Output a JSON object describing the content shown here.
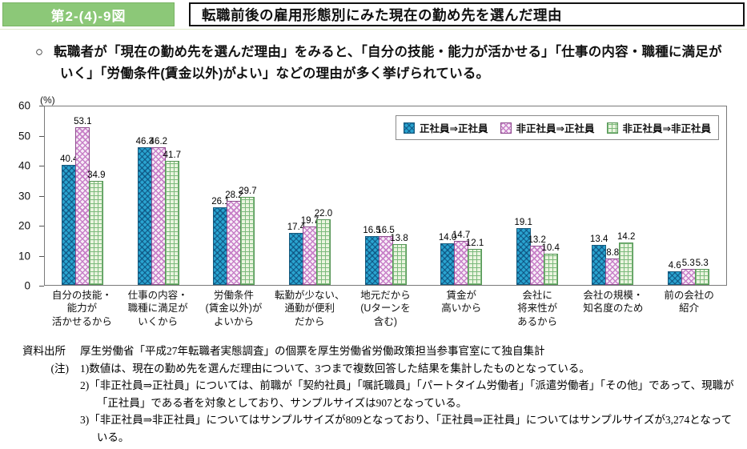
{
  "figure": {
    "number_label": "第2-(4)-9図",
    "title": "転職前後の雇用形態別にみた現在の勤め先を選んだ理由"
  },
  "lead": {
    "marker": "○",
    "text": "転職者が「現在の勤め先を選んだ理由」をみると、「自分の技能・能力が活かせる」「仕事の内容・職種に満足がいく」「労働条件(賃金以外)がよい」などの理由が多く挙げられている。"
  },
  "chart_data": {
    "type": "bar",
    "unit_label": "(%)",
    "ylim": [
      0,
      60
    ],
    "yticks": [
      0,
      10,
      20,
      30,
      40,
      50,
      60
    ],
    "grid": false,
    "legend_position": "top-right-inside",
    "categories": [
      "自分の技能・\n能力が\n活かせるから",
      "仕事の内容・\n職種に満足が\nいくから",
      "労働条件\n(賃金以外)が\nよいから",
      "転勤が少ない、\n通勤が便利\nだから",
      "地元だから\n(Uターンを\n含む)",
      "賃金が\n高いから",
      "会社に\n将来性が\nあるから",
      "会社の規模・\n知名度のため",
      "前の会社の\n紹介"
    ],
    "series": [
      {
        "name": "正社員⇒正社員",
        "values": [
          40.4,
          46.3,
          26.1,
          17.4,
          16.5,
          14.0,
          19.1,
          13.4,
          4.6
        ]
      },
      {
        "name": "非正社員⇒正社員",
        "values": [
          53.1,
          46.2,
          28.2,
          19.7,
          16.5,
          14.7,
          13.2,
          8.8,
          5.3
        ]
      },
      {
        "name": "非正社員⇒非正社員",
        "values": [
          34.9,
          41.7,
          29.7,
          22.0,
          13.8,
          12.1,
          10.4,
          14.2,
          5.3
        ]
      }
    ]
  },
  "notes": {
    "source_label": "資料出所",
    "source_text": "厚生労働省「平成27年転職者実態調査」の個票を厚生労働省労働政策担当参事官室にて独自集計",
    "note_label": "(注)",
    "items": [
      "1)数値は、現在の勤め先を選んだ理由について、3つまで複数回答した結果を集計したものとなっている。",
      "2)「非正社員⇒正社員」については、前職が「契約社員」「嘱託職員」「パートタイム労働者」「派遣労働者」「その他」であって、現職が「正社員」である者を対象としており、サンプルサイズは907となっている。",
      "3)「非正社員⇒非正社員」についてはサンプルサイズが809となっており、「正社員⇒正社員」についてはサンプルサイズが3,274となっている。"
    ]
  },
  "colors": {
    "header_label_bg": "#8CC878",
    "series_colors": [
      "#2AA4D0",
      "#C77FC7",
      "#7CBA7C"
    ]
  }
}
